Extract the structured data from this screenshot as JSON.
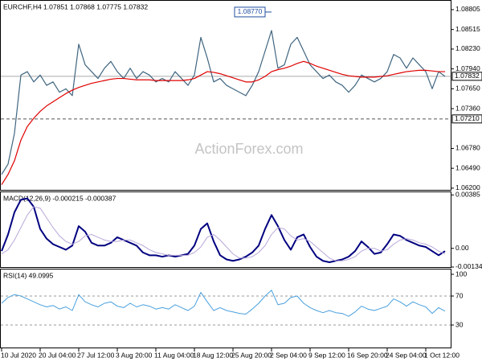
{
  "chart_data": [
    {
      "type": "line",
      "title": "EURCHF,H4 1.07851 1.07868 1.07775 1.07832",
      "watermark": "ActionForex.com",
      "categories": [
        "10 Jul 2020",
        null,
        null,
        null,
        null,
        null,
        "20 Jul 04:00",
        null,
        null,
        null,
        null,
        null,
        "27 Jul 12:00",
        null,
        null,
        null,
        null,
        null,
        "3 Aug 20:00",
        null,
        null,
        null,
        null,
        null,
        "11 Aug 04:00",
        null,
        null,
        null,
        null,
        null,
        "18 Aug 12:00",
        null,
        null,
        null,
        null,
        null,
        "25 Aug 20:00",
        null,
        null,
        null,
        null,
        null,
        "2 Sep 04:00",
        null,
        null,
        null,
        null,
        null,
        "9 Sep 12:00",
        null,
        null,
        null,
        null,
        null,
        "16 Sep 20:00",
        null,
        null,
        null,
        null,
        null,
        "24 Sep 04:00",
        null,
        null,
        null,
        null,
        null,
        "1 Oct 12:00",
        null,
        null,
        null
      ],
      "series": [
        {
          "color": "#3f6580",
          "values": [
            1.064,
            1.0655,
            1.07,
            1.0785,
            1.079,
            1.0775,
            1.0785,
            1.077,
            1.0775,
            1.076,
            1.0765,
            1.0755,
            1.083,
            1.08,
            1.079,
            1.078,
            1.0795,
            1.0805,
            1.079,
            1.078,
            1.0795,
            1.078,
            1.079,
            1.0785,
            1.0775,
            1.078,
            1.0775,
            1.079,
            1.078,
            1.077,
            1.0785,
            1.084,
            1.081,
            1.0775,
            1.078,
            1.077,
            1.0765,
            1.076,
            1.0755,
            1.077,
            1.079,
            1.082,
            1.085,
            1.0795,
            1.08,
            1.083,
            1.084,
            1.082,
            1.08,
            1.079,
            1.078,
            1.0785,
            1.0775,
            1.077,
            1.076,
            1.077,
            1.0785,
            1.078,
            1.0775,
            1.078,
            1.079,
            1.0815,
            1.081,
            1.0795,
            1.081,
            1.08,
            1.079,
            1.0765,
            1.079,
            1.0783
          ]
        },
        {
          "color": "#e00000",
          "values": [
            1.0625,
            1.064,
            1.066,
            1.069,
            1.071,
            1.0722,
            1.0732,
            1.074,
            1.0746,
            1.0752,
            1.0758,
            1.0763,
            1.0767,
            1.077,
            1.0773,
            1.0775,
            1.0777,
            1.0779,
            1.078,
            1.078,
            1.0779,
            1.0778,
            1.0778,
            1.0778,
            1.0777,
            1.0777,
            1.0777,
            1.0777,
            1.0777,
            1.0778,
            1.078,
            1.0785,
            1.079,
            1.0789,
            1.0787,
            1.0784,
            1.0781,
            1.0778,
            1.0775,
            1.0775,
            1.0778,
            1.0783,
            1.079,
            1.0793,
            1.0795,
            1.0798,
            1.0802,
            1.0805,
            1.0802,
            1.0798,
            1.0795,
            1.0792,
            1.0789,
            1.0786,
            1.0784,
            1.0783,
            1.0782,
            1.0782,
            1.0782,
            1.0783,
            1.0784,
            1.0786,
            1.0788,
            1.079,
            1.0791,
            1.0792,
            1.0792,
            1.0791,
            1.079,
            1.079
          ]
        }
      ],
      "ylim": [
        1.06175,
        1.08922
      ],
      "yticks": [
        1.08805,
        1.08515,
        {
          "value": 1.0823,
          "label": "1.08230"
        },
        {
          "value": 1.0794,
          "label": "1.07940"
        },
        {
          "value": 1.0765,
          "label": "1.07650"
        },
        {
          "value": 1.0736,
          "label": "1.07360"
        },
        {
          "value": 1.0678,
          "label": "1.06780"
        },
        {
          "value": 1.0649,
          "label": "1.06490"
        },
        {
          "value": 1.062,
          "label": "1.06200"
        }
      ],
      "current_price": {
        "value": 1.07832,
        "label": "1.07832"
      },
      "level": {
        "value": 1.0721,
        "label": "1.07210"
      },
      "annotation": {
        "value": 1.0877,
        "label": "1.08770"
      }
    },
    {
      "type": "line",
      "title": "MACD(12,26,9) -0.000215 -0.000387",
      "series": [
        {
          "color": "#000080",
          "width": 2,
          "values": [
            -0.0002,
            0.001,
            0.0026,
            0.0035,
            0.0036,
            0.003,
            0.0014,
            0.0007,
            0.0003,
            0.0001,
            -0.0001,
            0.0002,
            0.0016,
            0.0012,
            0.0004,
            0.0002,
            0.0002,
            0.0004,
            0.0008,
            0.0006,
            0.0004,
            0.0002,
            -0.0003,
            -0.0005,
            -0.0005,
            -0.0006,
            -0.0005,
            -0.0006,
            -0.0005,
            -0.0004,
            0.0002,
            0.0014,
            0.0018,
            0.0005,
            -0.0005,
            -0.0008,
            -0.0009,
            -0.0008,
            -0.0006,
            -0.0003,
            0.0002,
            0.0014,
            0.0024,
            0.0016,
            0.0006,
            -0.0001,
            0.0008,
            0.001,
            0.0001,
            -0.0006,
            -0.0009,
            -0.001,
            -0.0009,
            -0.0008,
            -0.0006,
            -0.0002,
            0.0005,
            0.0001,
            -0.0004,
            -0.0003,
            0.0003,
            0.001,
            0.0009,
            0.0006,
            0.0004,
            0.0002,
            0.0001,
            -0.0002,
            -0.0005,
            -0.0002
          ]
        },
        {
          "color": "#b8a8d8",
          "width": 1,
          "values": [
            -0.0004,
            -0.0001,
            0.0006,
            0.0015,
            0.0024,
            0.003,
            0.0029,
            0.0022,
            0.0015,
            0.0009,
            0.0005,
            0.0003,
            0.0005,
            0.0009,
            0.001,
            0.0008,
            0.0006,
            0.0005,
            0.0005,
            0.0006,
            0.0006,
            0.0004,
            0.0002,
            -0.0001,
            -0.0003,
            -0.0004,
            -0.0005,
            -0.0005,
            -0.0005,
            -0.0005,
            -0.0003,
            0.0001,
            0.0008,
            0.001,
            0.0006,
            0.0001,
            -0.0004,
            -0.0007,
            -0.0007,
            -0.0006,
            -0.0003,
            0.0002,
            0.001,
            0.0015,
            0.0014,
            0.0009,
            0.0006,
            0.0007,
            0.0005,
            0.0001,
            -0.0003,
            -0.0007,
            -0.0009,
            -0.0009,
            -0.0008,
            -0.0006,
            -0.0002,
            0,
            0,
            -0.0002,
            -0.0001,
            0.0003,
            0.0006,
            0.0007,
            0.0006,
            0.0004,
            0.0003,
            0.0001,
            -0.0002,
            -0.0004
          ]
        }
      ],
      "ylim": [
        -0.00135,
        0.0041
      ],
      "yticks": [
        0.00385,
        {
          "value": 0,
          "label": "0.00"
        },
        -0.001348
      ]
    },
    {
      "type": "line",
      "title": "RSI(14) 49.0995",
      "series": [
        {
          "color": "#4aa0de",
          "width": 1,
          "values": [
            60,
            68,
            72,
            70,
            66,
            62,
            58,
            55,
            57,
            52,
            55,
            50,
            72,
            62,
            58,
            55,
            60,
            62,
            56,
            54,
            60,
            55,
            58,
            56,
            52,
            54,
            52,
            58,
            54,
            50,
            56,
            75,
            62,
            50,
            54,
            50,
            48,
            46,
            45,
            52,
            60,
            70,
            78,
            58,
            60,
            68,
            70,
            60,
            54,
            50,
            47,
            50,
            47,
            46,
            42,
            48,
            56,
            52,
            50,
            53,
            56,
            66,
            62,
            56,
            62,
            58,
            55,
            46,
            54,
            49.0995
          ]
        }
      ],
      "ylim": [
        0,
        100
      ],
      "yticks": [
        100,
        70,
        30
      ],
      "levels": [
        70,
        30
      ]
    }
  ]
}
